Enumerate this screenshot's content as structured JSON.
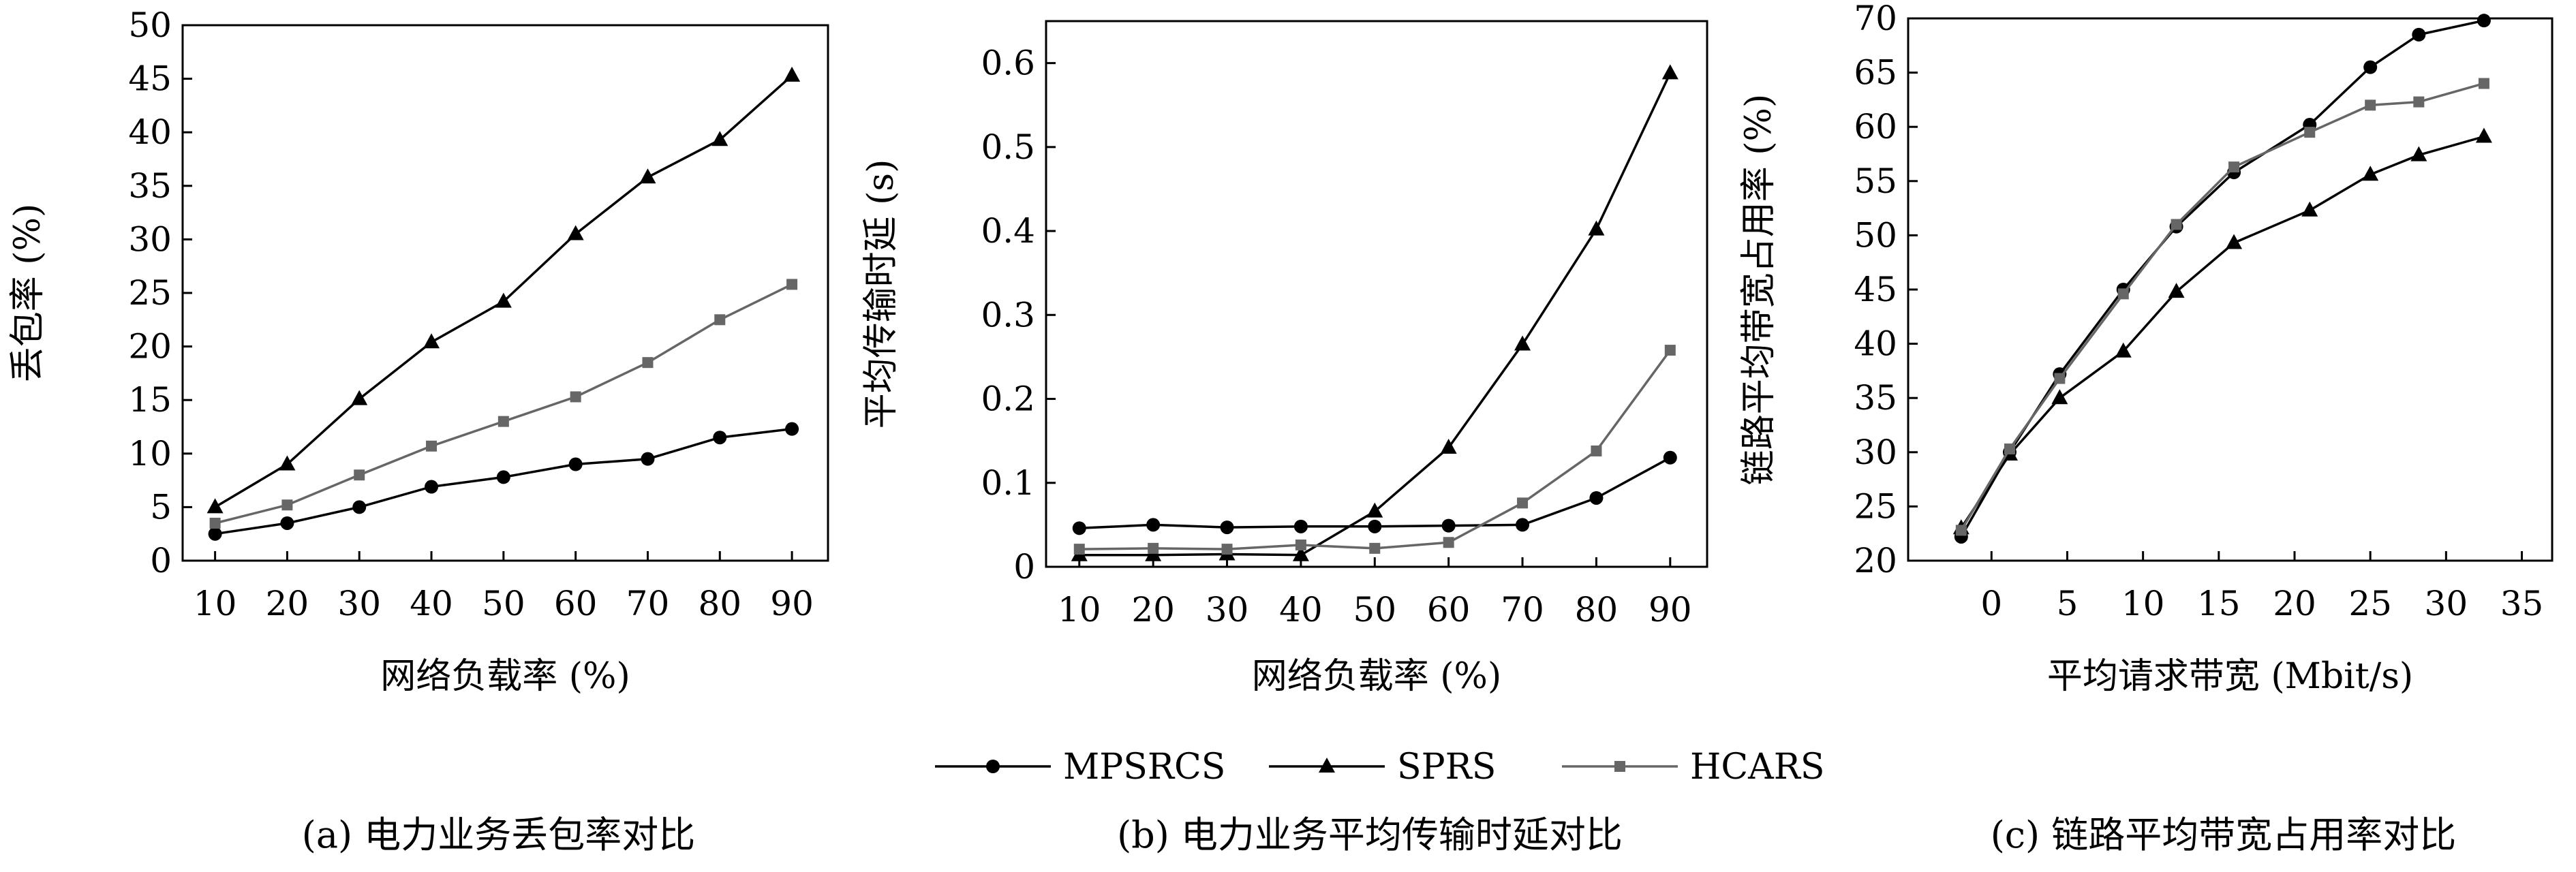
{
  "chart_data": [
    {
      "type": "line",
      "caption": "(a) 电力业务丢包率对比",
      "xlabel": "网络负载率 (%)",
      "ylabel": "丢包率 (%)",
      "x": [
        10,
        20,
        30,
        40,
        50,
        60,
        70,
        80,
        90
      ],
      "xlim": [
        5.5,
        95
      ],
      "ylim": [
        0,
        50
      ],
      "xticks": [
        "10",
        "20",
        "30",
        "40",
        "50",
        "60",
        "70",
        "80",
        "90"
      ],
      "yticks": [
        "0",
        "5",
        "10",
        "15",
        "20",
        "25",
        "30",
        "35",
        "40",
        "45",
        "50"
      ],
      "series": [
        {
          "name": "MPSRCS",
          "values": [
            2.5,
            3.5,
            5,
            6.9,
            7.8,
            9,
            9.5,
            11.5,
            12.3
          ]
        },
        {
          "name": "SPRS",
          "values": [
            5,
            9,
            15.1,
            20.4,
            24.2,
            30.5,
            35.8,
            39.3,
            45.3
          ]
        },
        {
          "name": "HCARS",
          "values": [
            3.5,
            5.2,
            8,
            10.7,
            13,
            15.3,
            18.5,
            22.5,
            25.8
          ]
        }
      ]
    },
    {
      "type": "line",
      "caption": "(b) 电力业务平均传输时延对比",
      "xlabel": "网络负载率 (%)",
      "ylabel": "平均传输时延 (s)",
      "x": [
        10,
        20,
        30,
        40,
        50,
        60,
        70,
        80,
        90
      ],
      "xlim": [
        5.5,
        95
      ],
      "ylim": [
        0,
        0.65
      ],
      "xticks": [
        "10",
        "20",
        "30",
        "40",
        "50",
        "60",
        "70",
        "80",
        "90"
      ],
      "yticks": [
        "0",
        "0.1",
        "0.2",
        "0.3",
        "0.4",
        "0.5",
        "0.6"
      ],
      "series": [
        {
          "name": "MPSRCS",
          "values": [
            0.046,
            0.05,
            0.047,
            0.048,
            0.048,
            0.049,
            0.05,
            0.082,
            0.13
          ]
        },
        {
          "name": "SPRS",
          "values": [
            0.014,
            0.014,
            0.015,
            0.014,
            0.066,
            0.142,
            0.265,
            0.402,
            0.588
          ]
        },
        {
          "name": "HCARS",
          "values": [
            0.021,
            0.022,
            0.021,
            0.026,
            0.022,
            0.029,
            0.076,
            0.138,
            0.258
          ]
        }
      ]
    },
    {
      "type": "line",
      "caption": "(c) 链路平均带宽占用率对比",
      "xlabel": "平均请求带宽 (Mbit/s)",
      "ylabel": "链路平均带宽占用率 (%)",
      "xlim": [
        -5.5,
        37
      ],
      "ylim": [
        20,
        70
      ],
      "xticks": [
        "0",
        "5",
        "10",
        "15",
        "20",
        "25",
        "30",
        "35"
      ],
      "yticks": [
        "20",
        "25",
        "30",
        "35",
        "40",
        "45",
        "50",
        "55",
        "60",
        "65",
        "70"
      ],
      "series": [
        {
          "name": "MPSRCS",
          "x": [
            -2,
            1.2,
            4.5,
            8.7,
            12.2,
            16,
            21,
            25,
            28.2,
            32.5
          ],
          "values": [
            22.2,
            30,
            37.2,
            45,
            50.8,
            55.8,
            60.2,
            65.5,
            68.5,
            69.8
          ]
        },
        {
          "name": "SPRS",
          "x": [
            -2,
            1.2,
            4.5,
            8.7,
            12.2,
            16,
            21,
            25,
            28.2,
            32.5
          ],
          "values": [
            23,
            29.8,
            35,
            39.3,
            44.8,
            49.3,
            52.3,
            55.6,
            57.4,
            59.1
          ]
        },
        {
          "name": "HCARS",
          "x": [
            -2,
            1.2,
            4.5,
            8.7,
            12.2,
            16,
            21,
            25,
            28.2,
            32.5
          ],
          "values": [
            22.8,
            30.3,
            36.8,
            44.6,
            51,
            56.3,
            59.5,
            62,
            62.3,
            64
          ]
        }
      ]
    }
  ],
  "legend": [
    {
      "name": "MPSRCS",
      "marker": "circle",
      "color": "#000000"
    },
    {
      "name": "SPRS",
      "marker": "triangle",
      "color": "#000000"
    },
    {
      "name": "HCARS",
      "marker": "square",
      "color": "#666666"
    }
  ]
}
